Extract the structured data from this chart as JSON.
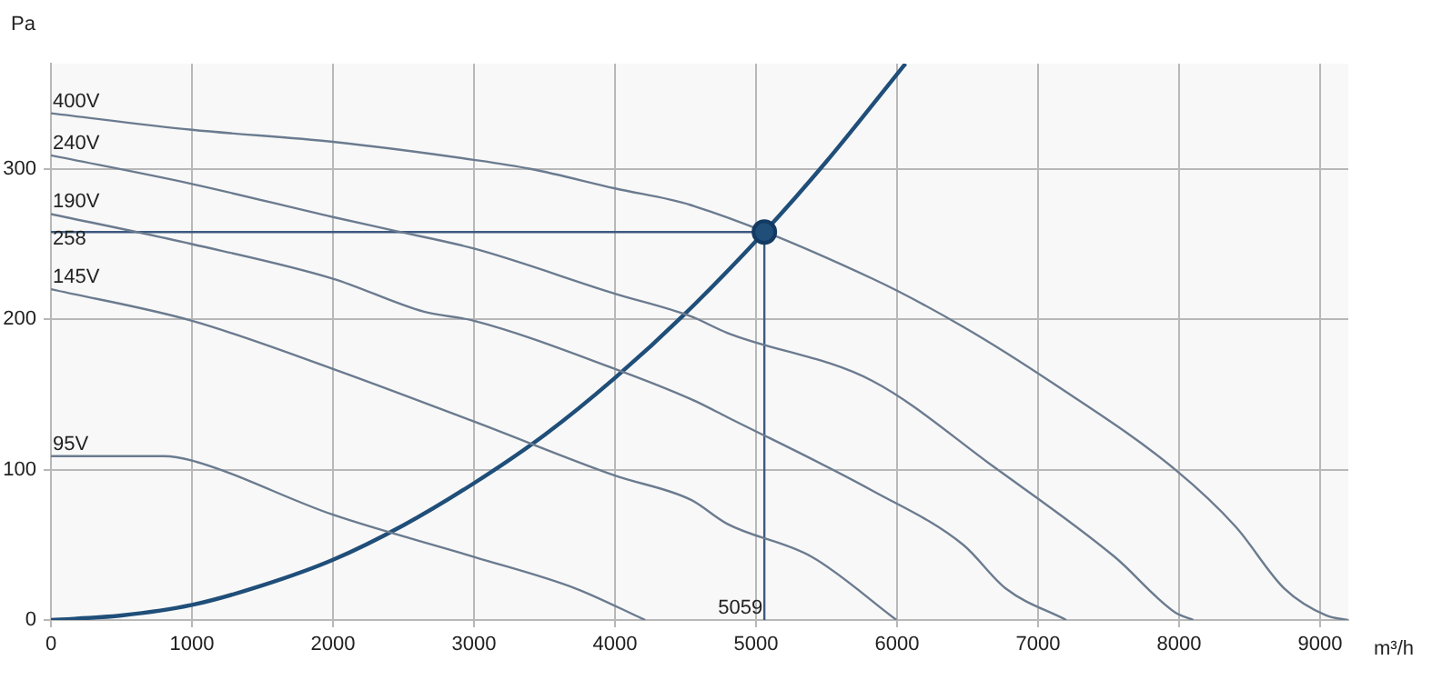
{
  "chart_data": {
    "type": "line",
    "xlabel": "m³/h",
    "ylabel": "Pa",
    "xlim": [
      0,
      9200
    ],
    "ylim": [
      0,
      370
    ],
    "xticks": [
      0,
      1000,
      2000,
      3000,
      4000,
      5000,
      6000,
      7000,
      8000,
      9000
    ],
    "yticks": [
      0,
      100,
      200,
      300
    ],
    "grid": true,
    "legend": false,
    "marker": "none",
    "series": [
      {
        "name": "400V",
        "color": "#6b7b8f",
        "x": [
          0,
          1000,
          2000,
          3000,
          3400,
          4000,
          4536,
          5825,
          6469,
          7113,
          7973,
          8402,
          8746,
          9046,
          9197
        ],
        "values": [
          337,
          326,
          318,
          306,
          300,
          287,
          276,
          227,
          195,
          157,
          100,
          62,
          21,
          3,
          0
        ]
      },
      {
        "name": "240V",
        "color": "#6b7b8f",
        "x": [
          0,
          1000,
          2000,
          2431,
          3000,
          4000,
          4536,
          4794,
          5825,
          6684,
          7543,
          7973,
          8102
        ],
        "values": [
          309,
          290,
          268,
          259,
          247,
          217,
          202,
          191,
          159,
          102,
          42,
          5,
          0
        ]
      },
      {
        "name": "190V",
        "color": "#6b7b8f",
        "x": [
          0,
          1000,
          2000,
          2646,
          3000,
          4000,
          4536,
          4794,
          5825,
          6469,
          6770,
          7200
        ],
        "values": [
          270,
          250,
          227,
          205,
          199,
          167,
          147,
          135,
          86,
          50,
          21,
          0
        ]
      },
      {
        "name": "145V",
        "color": "#6b7b8f",
        "x": [
          0,
          1000,
          2000,
          3000,
          4000,
          4536,
          4794,
          5395,
          5996
        ],
        "values": [
          220,
          199,
          167,
          132,
          96,
          80,
          64,
          42,
          0
        ]
      },
      {
        "name": "95V",
        "color": "#6b7b8f",
        "x": [
          0,
          800,
          1000,
          2000,
          3000,
          3720,
          4214
        ],
        "values": [
          109,
          109,
          106,
          70,
          42,
          21,
          0
        ]
      },
      {
        "color": "#1f4e79",
        "x": [
          0,
          500,
          1000,
          1500,
          2000,
          2500,
          3000,
          3500,
          4000,
          4500,
          5059,
          5500,
          6000,
          6060
        ],
        "values": [
          0,
          3,
          10,
          23,
          40,
          63,
          91,
          123,
          161,
          204,
          258,
          305,
          363,
          370
        ]
      },
      {
        "type": "scatter",
        "color": "#1f4e79",
        "marker": "circle",
        "x": [
          5059
        ],
        "values": [
          258
        ]
      }
    ],
    "ref_lines": [
      {
        "axis": "y",
        "value": 258,
        "label": "258",
        "color": "#3d5a80"
      },
      {
        "axis": "x",
        "value": 5059,
        "label": "5059",
        "color": "#3d5a80"
      }
    ]
  }
}
